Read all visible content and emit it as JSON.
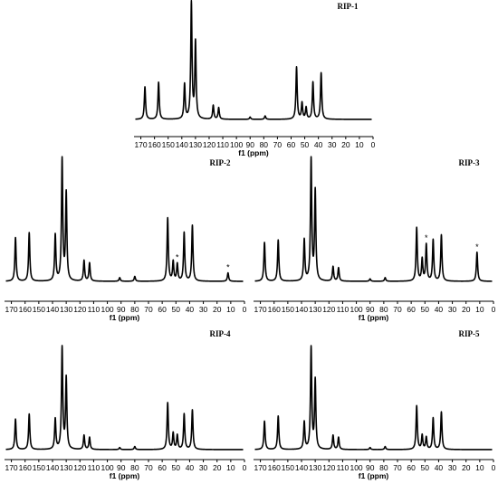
{
  "chart_data": [
    {
      "type": "line",
      "title": "RIP-1",
      "xlabel": "f1 (ppm)",
      "xlim": [
        175,
        0
      ],
      "x_ticks": [
        170,
        160,
        150,
        140,
        130,
        120,
        110,
        100,
        90,
        80,
        70,
        60,
        50,
        40,
        30,
        20,
        10,
        0
      ],
      "peaks": [
        {
          "ppm": 167,
          "height": 0.28
        },
        {
          "ppm": 157,
          "height": 0.32
        },
        {
          "ppm": 138,
          "height": 0.3
        },
        {
          "ppm": 133,
          "height": 1.0
        },
        {
          "ppm": 130,
          "height": 0.66
        },
        {
          "ppm": 117,
          "height": 0.12
        },
        {
          "ppm": 113,
          "height": 0.1
        },
        {
          "ppm": 90,
          "height": 0.02
        },
        {
          "ppm": 79,
          "height": 0.03
        },
        {
          "ppm": 56,
          "height": 0.45
        },
        {
          "ppm": 52,
          "height": 0.14
        },
        {
          "ppm": 49,
          "height": 0.1
        },
        {
          "ppm": 44,
          "height": 0.32
        },
        {
          "ppm": 38,
          "height": 0.4
        }
      ],
      "stars": []
    },
    {
      "type": "line",
      "title": "RIP-2",
      "xlabel": "f1 (ppm)",
      "xlim": [
        175,
        0
      ],
      "x_ticks": [
        170,
        160,
        150,
        140,
        130,
        120,
        110,
        100,
        90,
        80,
        70,
        60,
        50,
        40,
        30,
        20,
        10,
        0
      ],
      "peaks": [
        {
          "ppm": 167,
          "height": 0.36
        },
        {
          "ppm": 157,
          "height": 0.4
        },
        {
          "ppm": 138,
          "height": 0.38
        },
        {
          "ppm": 133,
          "height": 1.0
        },
        {
          "ppm": 130,
          "height": 0.72
        },
        {
          "ppm": 117,
          "height": 0.17
        },
        {
          "ppm": 113,
          "height": 0.15
        },
        {
          "ppm": 91,
          "height": 0.03
        },
        {
          "ppm": 80,
          "height": 0.04
        },
        {
          "ppm": 56,
          "height": 0.52
        },
        {
          "ppm": 52,
          "height": 0.16
        },
        {
          "ppm": 49,
          "height": 0.14
        },
        {
          "ppm": 44,
          "height": 0.4
        },
        {
          "ppm": 38,
          "height": 0.46
        },
        {
          "ppm": 12,
          "height": 0.07
        }
      ],
      "stars": [
        {
          "ppm": 49,
          "label": "*"
        },
        {
          "ppm": 12,
          "label": "*"
        }
      ]
    },
    {
      "type": "line",
      "title": "RIP-3",
      "xlabel": "f1 (ppm)",
      "xlim": [
        175,
        0
      ],
      "x_ticks": [
        170,
        160,
        150,
        140,
        130,
        120,
        110,
        100,
        90,
        80,
        70,
        60,
        50,
        40,
        30,
        20,
        10,
        0
      ],
      "peaks": [
        {
          "ppm": 167,
          "height": 0.32
        },
        {
          "ppm": 157,
          "height": 0.34
        },
        {
          "ppm": 138,
          "height": 0.34
        },
        {
          "ppm": 133,
          "height": 1.0
        },
        {
          "ppm": 130,
          "height": 0.74
        },
        {
          "ppm": 117,
          "height": 0.12
        },
        {
          "ppm": 113,
          "height": 0.11
        },
        {
          "ppm": 90,
          "height": 0.02
        },
        {
          "ppm": 79,
          "height": 0.03
        },
        {
          "ppm": 56,
          "height": 0.44
        },
        {
          "ppm": 52,
          "height": 0.18
        },
        {
          "ppm": 49,
          "height": 0.3
        },
        {
          "ppm": 44,
          "height": 0.34
        },
        {
          "ppm": 38,
          "height": 0.38
        },
        {
          "ppm": 12,
          "height": 0.24
        }
      ],
      "stars": [
        {
          "ppm": 49,
          "label": "*"
        },
        {
          "ppm": 12,
          "label": "*"
        }
      ]
    },
    {
      "type": "line",
      "title": "RIP-4",
      "xlabel": "f1 (ppm)",
      "xlim": [
        175,
        0
      ],
      "x_ticks": [
        170,
        160,
        150,
        140,
        130,
        120,
        110,
        100,
        90,
        80,
        70,
        60,
        50,
        40,
        30,
        20,
        10,
        0
      ],
      "peaks": [
        {
          "ppm": 167,
          "height": 0.3
        },
        {
          "ppm": 157,
          "height": 0.35
        },
        {
          "ppm": 138,
          "height": 0.3
        },
        {
          "ppm": 133,
          "height": 1.0
        },
        {
          "ppm": 130,
          "height": 0.7
        },
        {
          "ppm": 117,
          "height": 0.14
        },
        {
          "ppm": 113,
          "height": 0.12
        },
        {
          "ppm": 91,
          "height": 0.02
        },
        {
          "ppm": 80,
          "height": 0.03
        },
        {
          "ppm": 56,
          "height": 0.46
        },
        {
          "ppm": 52,
          "height": 0.16
        },
        {
          "ppm": 49,
          "height": 0.14
        },
        {
          "ppm": 44,
          "height": 0.35
        },
        {
          "ppm": 38,
          "height": 0.39
        }
      ],
      "stars": []
    },
    {
      "type": "line",
      "title": "RIP-5",
      "xlabel": "f1 (ppm)",
      "xlim": [
        175,
        0
      ],
      "x_ticks": [
        170,
        160,
        150,
        140,
        130,
        120,
        110,
        100,
        90,
        80,
        70,
        60,
        50,
        40,
        30,
        20,
        10,
        0
      ],
      "peaks": [
        {
          "ppm": 167,
          "height": 0.28
        },
        {
          "ppm": 157,
          "height": 0.33
        },
        {
          "ppm": 138,
          "height": 0.27
        },
        {
          "ppm": 133,
          "height": 1.0
        },
        {
          "ppm": 130,
          "height": 0.68
        },
        {
          "ppm": 117,
          "height": 0.14
        },
        {
          "ppm": 113,
          "height": 0.12
        },
        {
          "ppm": 90,
          "height": 0.02
        },
        {
          "ppm": 79,
          "height": 0.03
        },
        {
          "ppm": 56,
          "height": 0.43
        },
        {
          "ppm": 52,
          "height": 0.14
        },
        {
          "ppm": 49,
          "height": 0.12
        },
        {
          "ppm": 44,
          "height": 0.31
        },
        {
          "ppm": 38,
          "height": 0.37
        }
      ],
      "stars": []
    }
  ]
}
